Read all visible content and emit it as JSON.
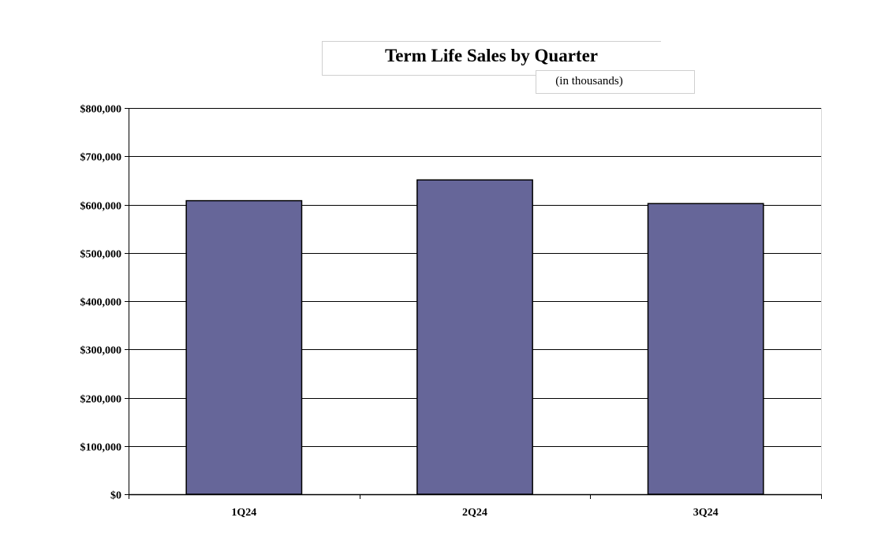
{
  "chart_data": {
    "type": "bar",
    "title": "Term Life Sales by Quarter",
    "subtitle": "(in thousands)",
    "categories": [
      "1Q24",
      "2Q24",
      "3Q24"
    ],
    "values": [
      608000,
      651000,
      602000
    ],
    "ylim": [
      0,
      800000
    ],
    "yticks": [
      0,
      100000,
      200000,
      300000,
      400000,
      500000,
      600000,
      700000,
      800000
    ],
    "ytick_labels": [
      "$0",
      "$100,000",
      "$200,000",
      "$300,000",
      "$400,000",
      "$500,000",
      "$600,000",
      "$700,000",
      "$800,000"
    ],
    "grid": true,
    "bar_color": "#666699",
    "legend": "none"
  }
}
